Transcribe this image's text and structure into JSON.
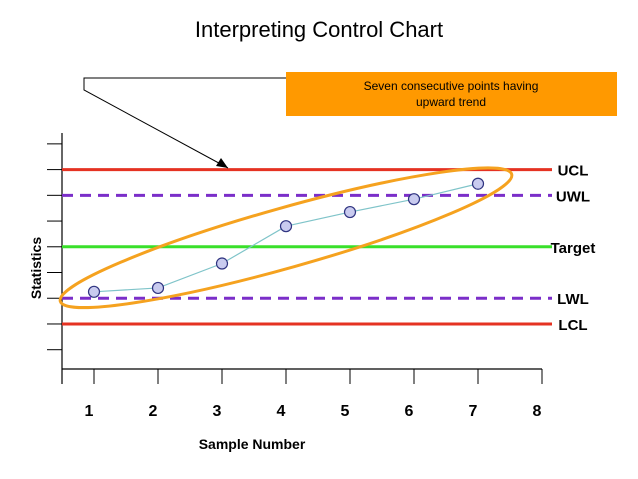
{
  "chart_data": {
    "type": "line",
    "title": "Interpreting Control Chart",
    "xlabel": "Sample Number",
    "ylabel": "Statistics",
    "categories": [
      "1",
      "2",
      "3",
      "4",
      "5",
      "6",
      "7",
      "8"
    ],
    "x": [
      1,
      2,
      3,
      4,
      5,
      6,
      7
    ],
    "values": [
      -1.75,
      -1.6,
      -0.65,
      0.8,
      1.35,
      1.85,
      2.45
    ],
    "xlim": [
      0.5,
      8
    ],
    "ylim": [
      -4.75,
      4.5
    ],
    "grid": false,
    "control_lines": [
      {
        "label": "UCL",
        "value": 3,
        "color": "#e53222",
        "style": "solid"
      },
      {
        "label": "UWL",
        "value": 2,
        "color": "#7b2ec9",
        "style": "dashed"
      },
      {
        "label": "Target",
        "value": 0,
        "color": "#39e02a",
        "style": "solid"
      },
      {
        "label": "LWL",
        "value": -2,
        "color": "#7b2ec9",
        "style": "dashed"
      },
      {
        "label": "LCL",
        "value": -3,
        "color": "#e53222",
        "style": "solid"
      }
    ],
    "annotation": {
      "text_lines": [
        "Seven consecutive points having",
        "upward trend"
      ],
      "box_color": "#ff9900",
      "ellipse_color": "#f5a21f"
    },
    "series_color": "#7fc4c9",
    "marker_fill": "#c9cbef",
    "marker_stroke": "#2f3380"
  }
}
